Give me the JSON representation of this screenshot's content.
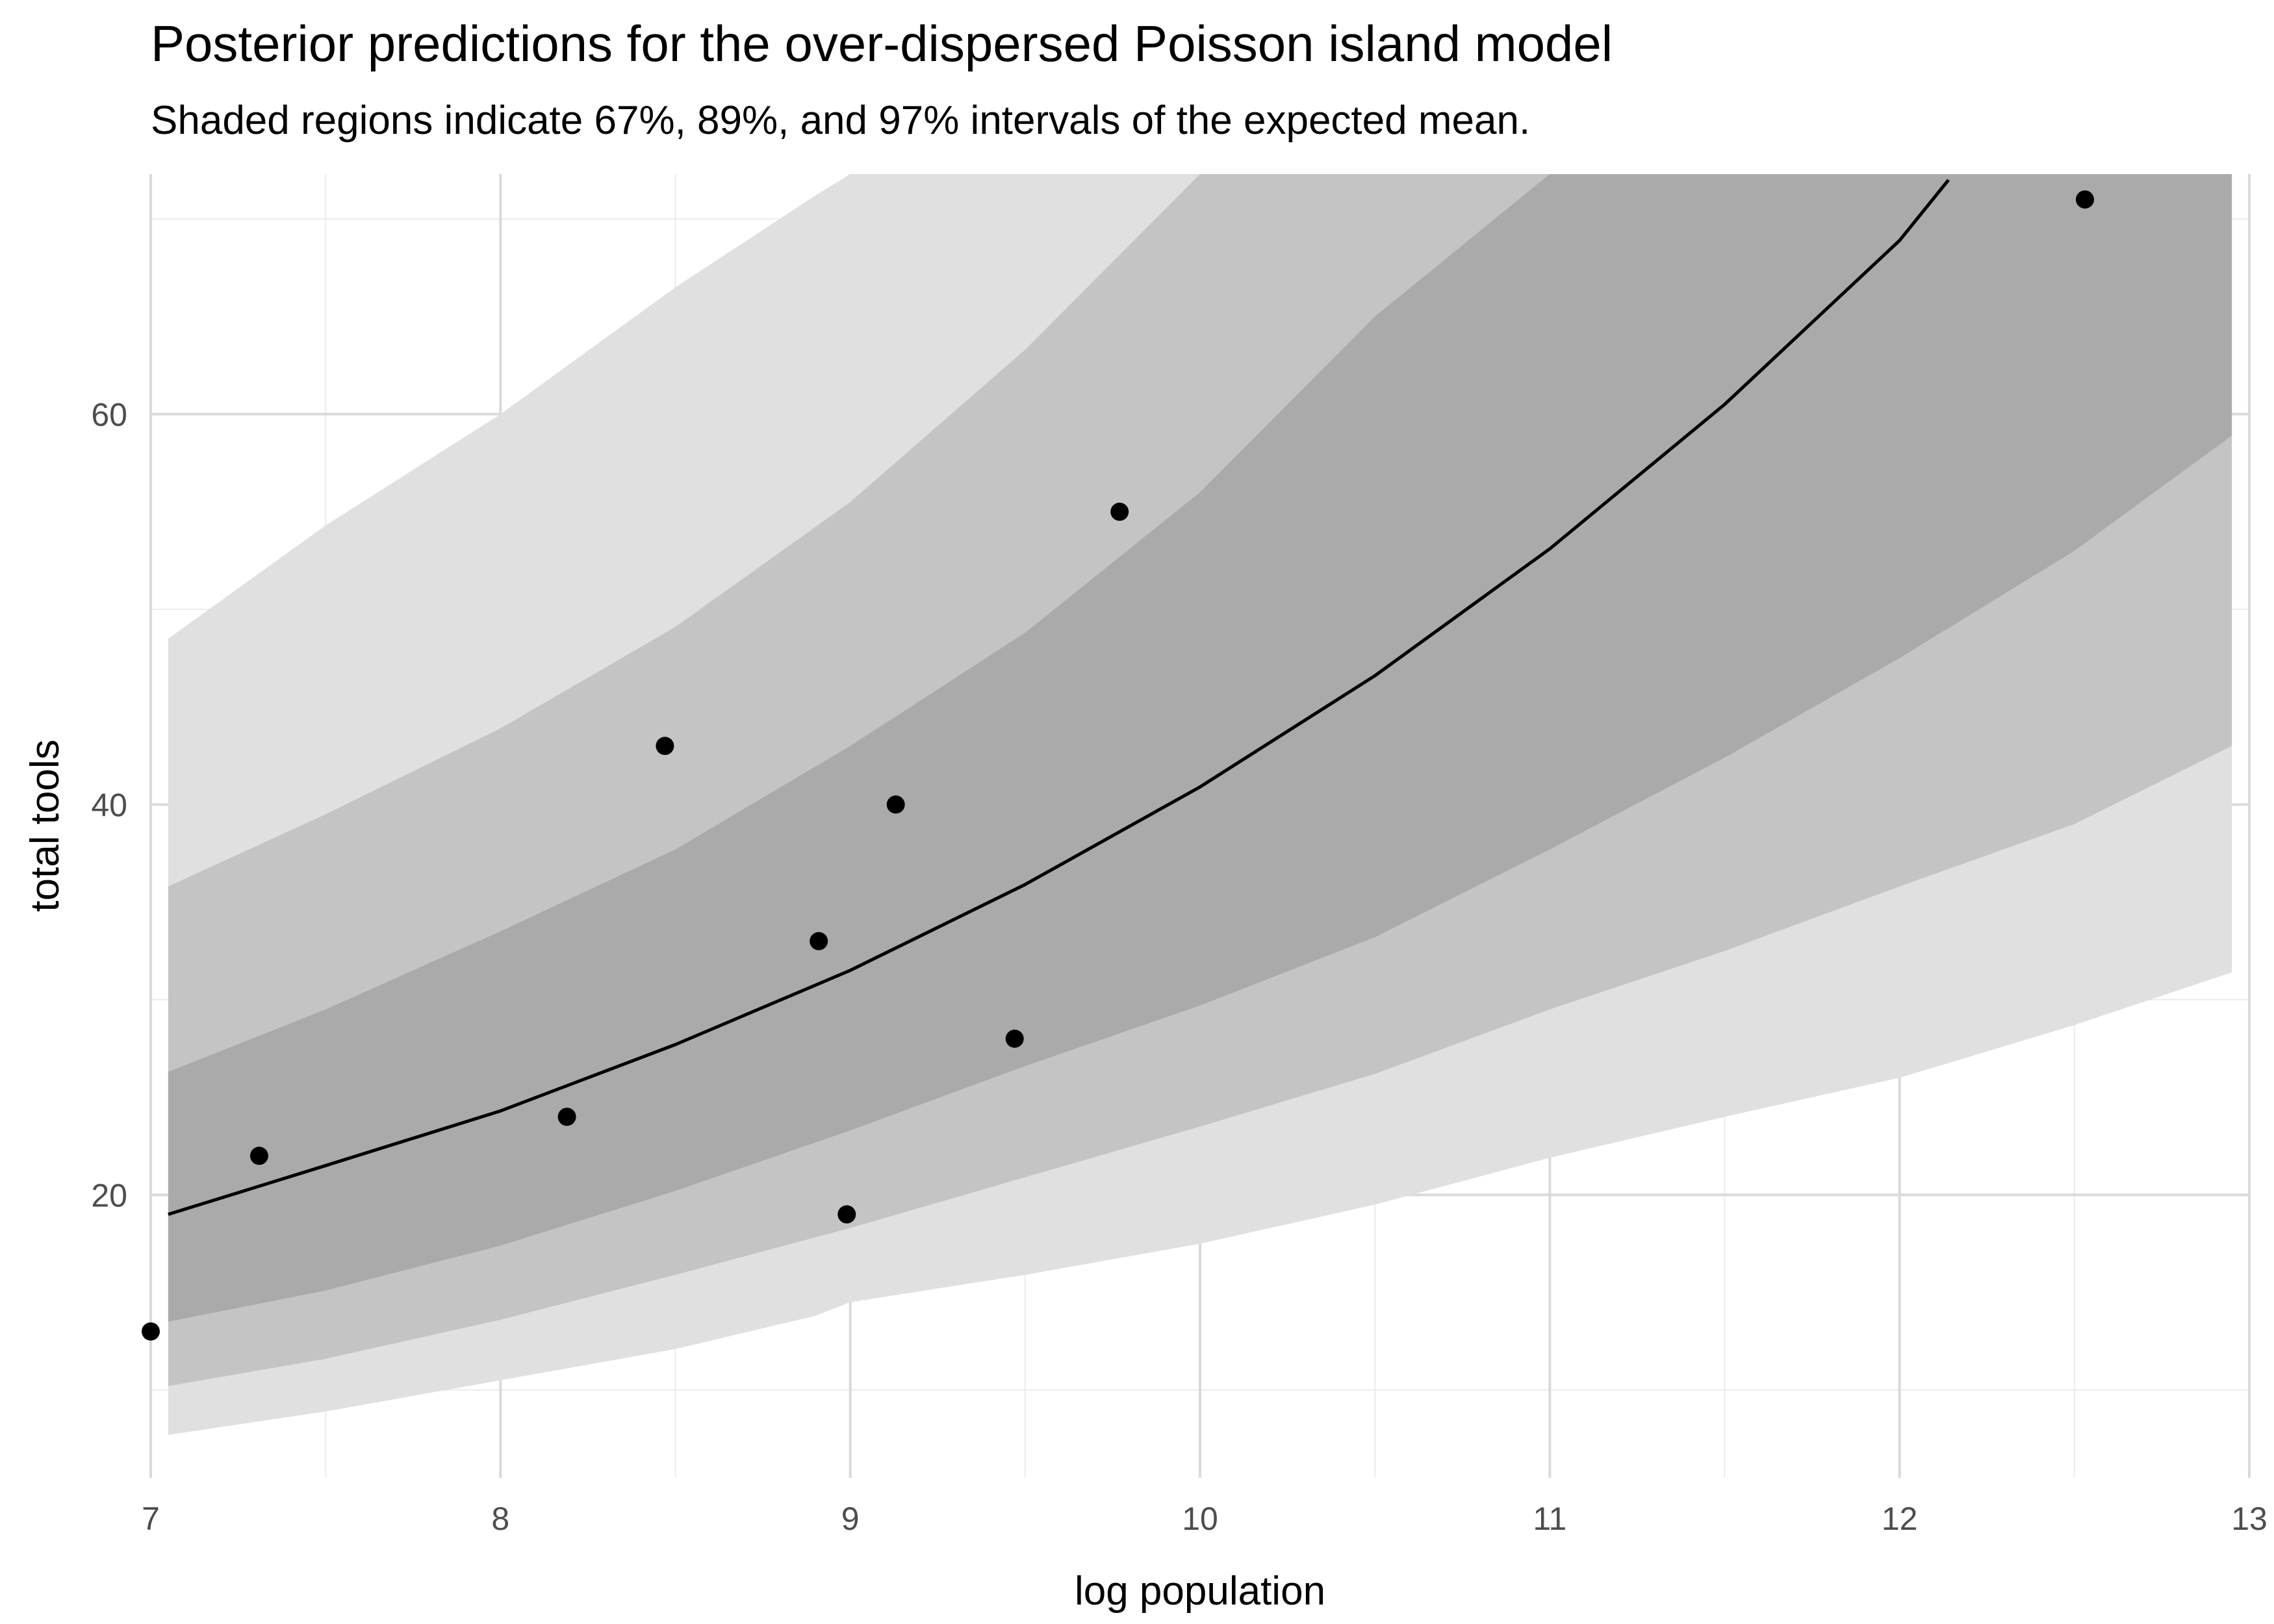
{
  "chart_data": {
    "type": "line",
    "title": "Posterior predictions for the over-dispersed Poisson island model",
    "subtitle": "Shaded regions indicate 67%, 89%, and 97% intervals of the expected mean.",
    "xlabel": "log population",
    "ylabel": "total tools",
    "xlim": [
      7,
      13
    ],
    "ylim": [
      5.5,
      72.3
    ],
    "xticks": [
      "7",
      "8",
      "9",
      "10",
      "11",
      "12",
      "13"
    ],
    "yticks": [
      "20",
      "40",
      "60"
    ],
    "grid": true,
    "legend": "none",
    "series": [
      {
        "type": "line",
        "x": [
          7.05,
          7.5,
          8.0,
          8.5,
          9.0,
          9.5,
          10.0,
          10.5,
          11.0,
          11.5,
          12.0,
          12.14
        ],
        "y": [
          19.0,
          21.5,
          24.3,
          27.7,
          31.5,
          35.9,
          40.9,
          46.6,
          53.1,
          60.5,
          68.9,
          72.0
        ]
      },
      {
        "type": "band",
        "interval": "67%",
        "x": [
          7.05,
          7.5,
          8.0,
          8.5,
          9.0,
          9.5,
          10.0,
          10.5,
          11.0,
          11.5,
          12.0,
          12.5,
          12.95
        ],
        "lower": [
          13.5,
          15.1,
          17.4,
          20.2,
          23.3,
          26.6,
          29.7,
          33.2,
          37.7,
          42.4,
          47.5,
          53.0,
          58.9
        ],
        "upper": [
          26.3,
          29.5,
          33.5,
          37.7,
          43.0,
          48.8,
          56.0,
          65.0,
          72.3,
          72.3,
          72.3,
          72.3,
          72.3
        ]
      },
      {
        "type": "band",
        "interval": "89%",
        "x": [
          7.05,
          7.5,
          8.0,
          8.5,
          9.0,
          9.5,
          10.0,
          10.5,
          11.0,
          11.5,
          12.0,
          12.5,
          12.95
        ],
        "lower": [
          10.2,
          11.6,
          13.6,
          15.9,
          18.3,
          20.9,
          23.5,
          26.2,
          29.5,
          32.5,
          35.8,
          39.0,
          43.0
        ],
        "upper": [
          35.8,
          39.5,
          43.9,
          49.1,
          55.5,
          63.3,
          72.3,
          72.3,
          72.3,
          72.3,
          72.3,
          72.3,
          72.3
        ]
      },
      {
        "type": "band",
        "interval": "97%",
        "x": [
          7.05,
          7.5,
          8.0,
          8.5,
          8.9,
          9.0,
          9.5,
          10.0,
          10.5,
          11.0,
          11.5,
          12.0,
          12.5,
          12.95
        ],
        "lower": [
          7.7,
          8.9,
          10.5,
          12.1,
          13.8,
          14.5,
          15.9,
          17.5,
          19.5,
          21.9,
          24.0,
          26.0,
          28.7,
          31.4
        ],
        "upper": [
          48.5,
          54.3,
          60.0,
          66.5,
          71.2,
          72.3,
          72.3,
          72.3,
          72.3,
          72.3,
          72.3,
          72.3,
          72.3,
          72.3
        ]
      },
      {
        "type": "scatter",
        "x": [
          7.0,
          7.31,
          8.19,
          8.47,
          8.91,
          8.99,
          9.13,
          9.47,
          9.77,
          12.53
        ],
        "y": [
          13,
          22,
          24,
          43,
          33,
          19,
          40,
          28,
          55,
          71
        ]
      }
    ],
    "colors": {
      "band_97": "#e0e0e0",
      "band_89": "#c4c4c4",
      "band_67": "#aaaaaa",
      "line": "#000000",
      "points": "#000000",
      "grid_major": "#d9d9d9",
      "grid_minor": "#ececec"
    }
  }
}
